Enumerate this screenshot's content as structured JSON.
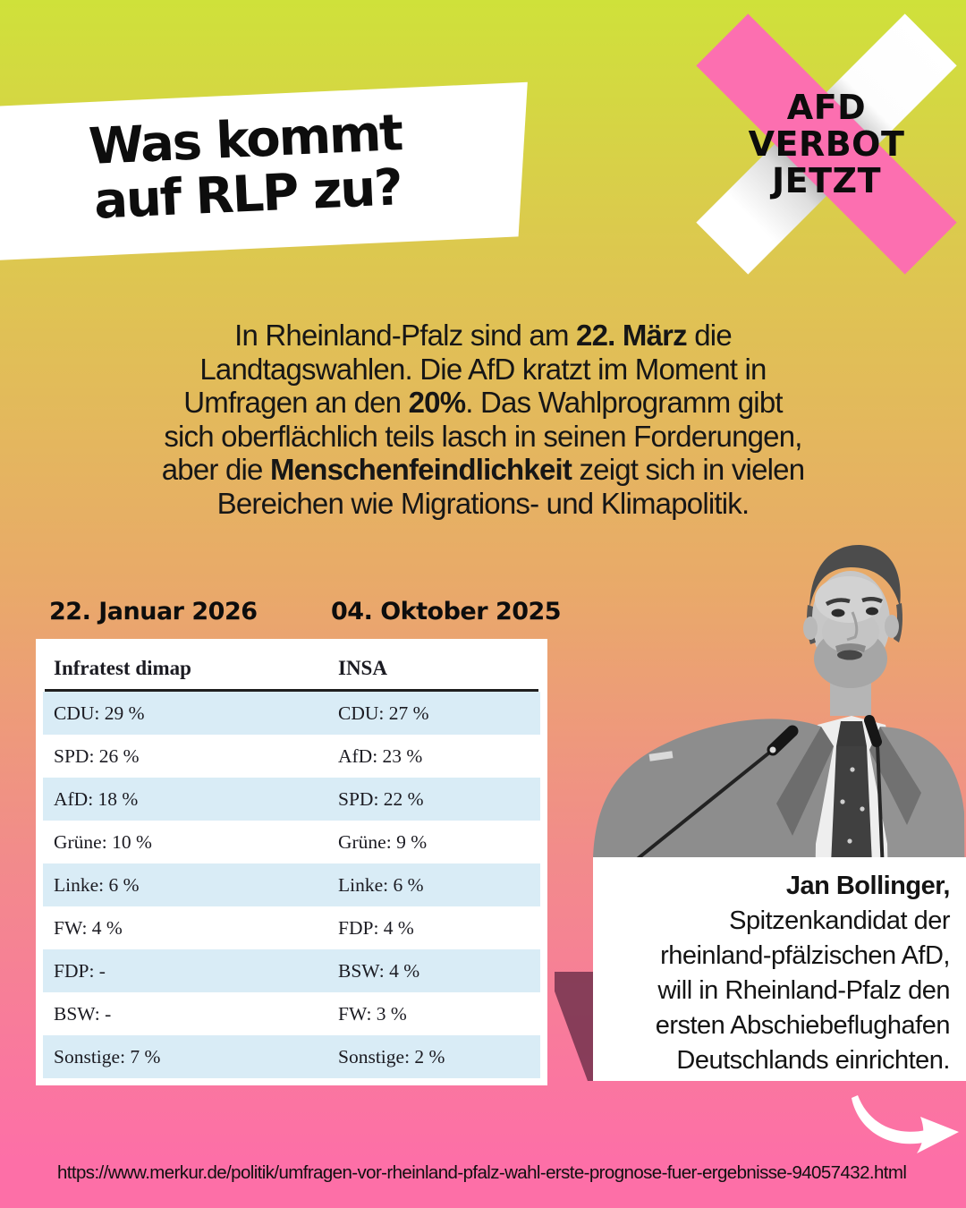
{
  "colors": {
    "gradient_top": "#cfe13a",
    "gradient_mid_orange": "#e9a96a",
    "gradient_bottom_pink": "#fd6fa7",
    "badge_pink": "#fc6fb0",
    "table_row_blue": "#d9ecf6",
    "photo_shadow_maroon": "#73324d"
  },
  "headline": {
    "lines": [
      "Was kommt",
      "auf RLP zu?"
    ]
  },
  "badge": {
    "lines": [
      "AFD",
      "VERBOT",
      "JETZT"
    ]
  },
  "intro": {
    "lines": [
      [
        {
          "t": "In Rheinland-Pfalz sind am "
        },
        {
          "t": "22. März",
          "b": true
        },
        {
          "t": " die"
        }
      ],
      [
        {
          "t": "Landtagswahlen. Die AfD kratzt im Moment in"
        }
      ],
      [
        {
          "t": "Umfragen an den "
        },
        {
          "t": "20%",
          "b": true
        },
        {
          "t": ". Das Wahlprogramm gibt"
        }
      ],
      [
        {
          "t": "sich oberflächlich teils lasch in seinen Forderungen,"
        }
      ],
      [
        {
          "t": "aber die "
        },
        {
          "t": "Menschenfeindlichkeit",
          "b": true
        },
        {
          "t": " zeigt sich in vielen"
        }
      ],
      [
        {
          "t": "Bereichen wie Migrations- und Klimapolitik."
        }
      ]
    ]
  },
  "polls": {
    "left": {
      "date": "22. Januar 2026",
      "institute": "Infratest dimap",
      "results": [
        "CDU: 29 %",
        "SPD: 26 %",
        "AfD: 18 %",
        "Grüne: 10 %",
        "Linke: 6 %",
        "FW: 4 %",
        "FDP: -",
        "BSW: -",
        "Sonstige: 7 %"
      ]
    },
    "right": {
      "date": "04. Oktober 2025",
      "institute": "INSA",
      "results": [
        "CDU: 27 %",
        "AfD: 23 %",
        "SPD: 22 %",
        "Grüne: 9 %",
        "Linke: 6 %",
        "FDP: 4 %",
        "BSW: 4 %",
        "FW: 3 %",
        "Sonstige: 2 %"
      ]
    }
  },
  "quote": {
    "lines": [
      [
        {
          "t": "Jan Bollinger,",
          "b": true
        }
      ],
      [
        {
          "t": "Spitzenkandidat der"
        }
      ],
      [
        {
          "t": "rheinland-pfälzischen AfD,"
        }
      ],
      [
        {
          "t": "will in Rheinland-Pfalz den"
        }
      ],
      [
        {
          "t": "ersten Abschiebeflughafen"
        }
      ],
      [
        {
          "t": "Deutschlands einrichten."
        }
      ]
    ]
  },
  "source_url": "https://www.merkur.de/politik/umfragen-vor-rheinland-pfalz-wahl-erste-prognose-fuer-ergebnisse-94057432.html",
  "chart_data": {
    "type": "table",
    "title": "Umfragen Landtagswahl Rheinland-Pfalz",
    "columns": [
      "Infratest dimap (22. Januar 2026)",
      "INSA (04. Oktober 2025)"
    ],
    "series": [
      {
        "name": "Infratest dimap",
        "date": "22. Januar 2026",
        "parties": [
          "CDU",
          "SPD",
          "AfD",
          "Grüne",
          "Linke",
          "FW",
          "FDP",
          "BSW",
          "Sonstige"
        ],
        "values": [
          29,
          26,
          18,
          10,
          6,
          4,
          null,
          null,
          7
        ]
      },
      {
        "name": "INSA",
        "date": "04. Oktober 2025",
        "parties": [
          "CDU",
          "AfD",
          "SPD",
          "Grüne",
          "Linke",
          "FDP",
          "BSW",
          "FW",
          "Sonstige"
        ],
        "values": [
          27,
          23,
          22,
          9,
          6,
          4,
          4,
          3,
          2
        ]
      }
    ]
  }
}
